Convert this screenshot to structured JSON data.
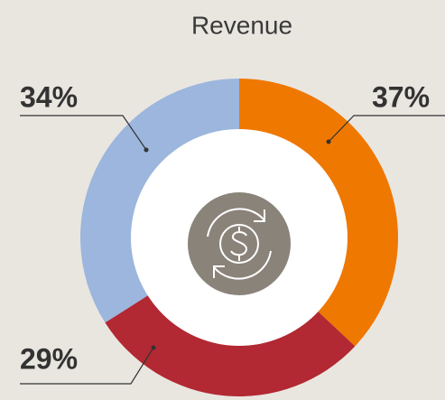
{
  "chart_data": {
    "type": "donut",
    "title": "Revenue",
    "values": [
      37,
      29,
      34
    ],
    "value_labels": [
      "37%",
      "29%",
      "34%"
    ],
    "colors": [
      "#ef7800",
      "#b22833",
      "#9cb6dd"
    ]
  }
}
